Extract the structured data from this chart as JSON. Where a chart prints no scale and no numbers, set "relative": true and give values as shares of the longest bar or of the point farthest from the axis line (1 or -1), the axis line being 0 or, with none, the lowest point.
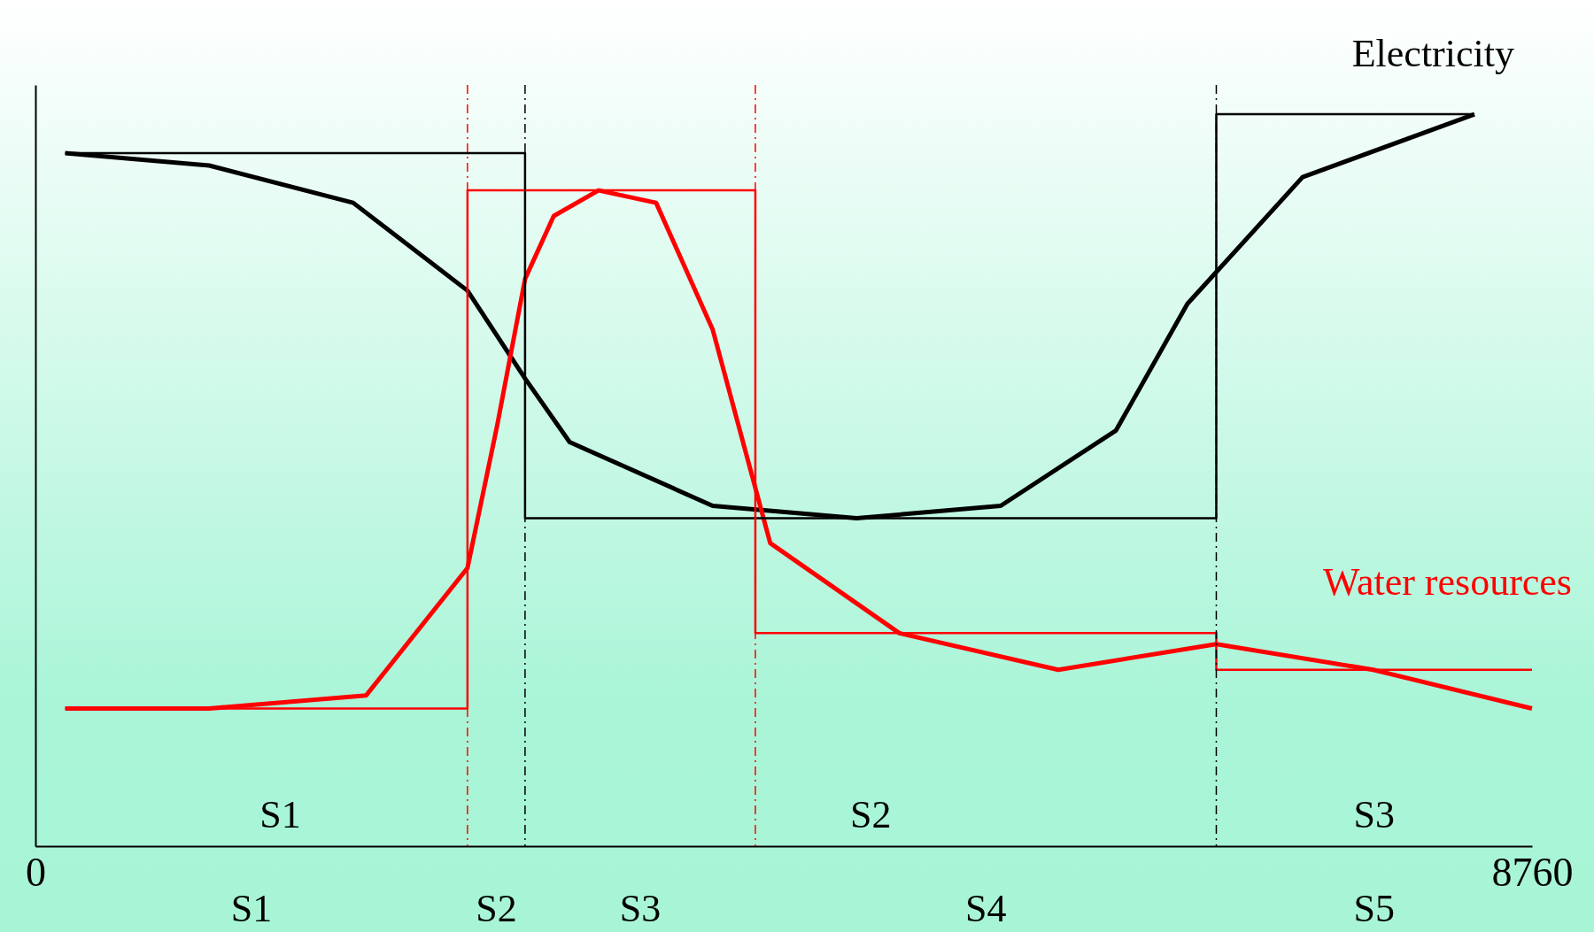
{
  "chart_data": {
    "type": "line",
    "relative": true,
    "xlim": [
      0,
      8760
    ],
    "xticks": [
      0,
      8760
    ],
    "grid": false,
    "marker": "none",
    "series": [
      {
        "name": "Electricity",
        "type": "line",
        "color": "#000000",
        "x": [
          174,
          1017,
          1860,
          2529,
          2866,
          3127,
          3964,
          4807,
          5650,
          6325,
          6743,
          7417,
          8423
        ],
        "values": [
          0.947,
          0.93,
          0.879,
          0.759,
          0.639,
          0.552,
          0.465,
          0.448,
          0.465,
          0.568,
          0.741,
          0.914,
          1
        ]
      },
      {
        "name": "Water resources",
        "type": "line",
        "color": "#ff0000",
        "x": [
          174,
          1017,
          1936,
          2529,
          2703,
          2866,
          3034,
          3296,
          3633,
          3964,
          4301,
          5057,
          5987,
          6912,
          7830,
          8760
        ],
        "values": [
          0.188,
          0.188,
          0.206,
          0.38,
          0.575,
          0.775,
          0.861,
          0.896,
          0.879,
          0.706,
          0.414,
          0.291,
          0.241,
          0.276,
          0.241,
          0.188
        ]
      },
      {
        "type": "step",
        "color": "#000000",
        "x": [
          174,
          2866,
          6912,
          8423
        ],
        "values": [
          0.947,
          0.448,
          1,
          1
        ]
      },
      {
        "type": "step",
        "color": "#ff0000",
        "x": [
          174,
          2529,
          4214,
          6912,
          8760
        ],
        "values": [
          0.188,
          0.896,
          0.291,
          0.241,
          0.241
        ]
      }
    ],
    "ref_lines": [
      {
        "axis": "x",
        "value": 2529,
        "color": "#ff0000",
        "line_style": "dashed"
      },
      {
        "axis": "x",
        "value": 2866,
        "color": "#000000",
        "line_style": "dashed"
      },
      {
        "axis": "x",
        "value": 4214,
        "color": "#ff0000",
        "line_style": "dashed"
      },
      {
        "axis": "x",
        "value": 6912,
        "color": "#000000",
        "line_style": "dashed"
      }
    ],
    "annotations": [
      "S1",
      "S2",
      "S3",
      "S1",
      "S2",
      "S3",
      "S4",
      "S5"
    ]
  }
}
